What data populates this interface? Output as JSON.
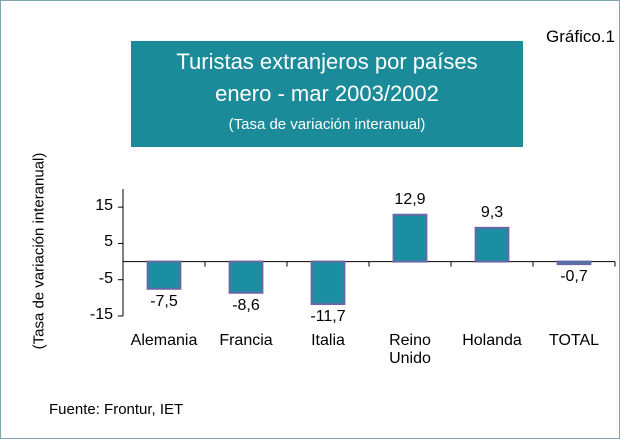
{
  "chart_data": {
    "type": "bar",
    "chart_label": "Gráfico.1",
    "title": "Turistas extranjeros por países",
    "subtitle": "enero - mar 2003/2002",
    "title_note": "(Tasa de variación interanual)",
    "y_label": "(Tasa de variación interanual)",
    "categories": [
      "Alemania",
      "Francia",
      "Italia",
      "Reino Unido",
      "Holanda",
      "TOTAL"
    ],
    "values": [
      -7.5,
      -8.6,
      -11.7,
      12.9,
      9.3,
      -0.7
    ],
    "value_labels": [
      "-7,5",
      "-8,6",
      "-11,7",
      "12,9",
      "9,3",
      "-0,7"
    ],
    "color": "#1b8fa1",
    "ylim": [
      -15,
      20
    ],
    "yticks": [
      -15,
      -5,
      5,
      15
    ],
    "grid": false,
    "source": "Fuente: Frontur, IET"
  }
}
